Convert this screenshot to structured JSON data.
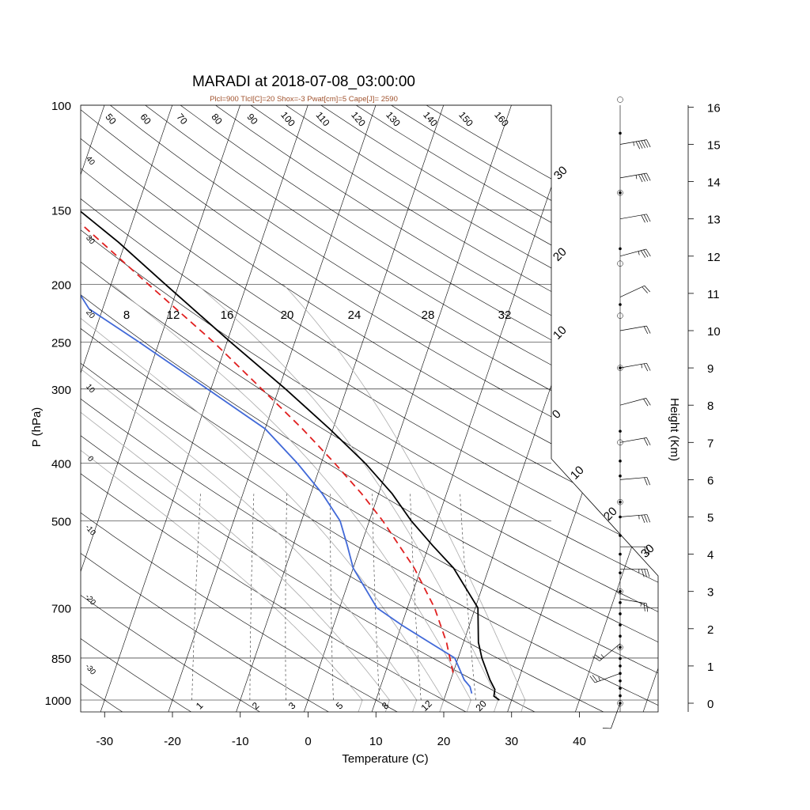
{
  "chart_data": {
    "type": "line",
    "title": "MARADI at 2018-07-08_03:00:00",
    "subtitle": "Plcl=900 Tlcl[C]=20 Shox=-3 Pwat[cm]=5 Cape[J]= 2590",
    "xlabel": "Temperature (C)",
    "ylabel": "P (hPa)",
    "y2label": "Height (Km)",
    "xlim": [
      -35,
      45
    ],
    "ylim": [
      1050,
      100
    ],
    "y_scale": "log",
    "x_ticks": [
      -30,
      -20,
      -10,
      0,
      10,
      20,
      30,
      40
    ],
    "p_ticks": [
      100,
      150,
      200,
      250,
      300,
      400,
      500,
      700,
      850,
      1000
    ],
    "height_ticks": [
      0,
      1,
      2,
      3,
      4,
      5,
      6,
      7,
      8,
      9,
      10,
      11,
      12,
      13,
      14,
      15,
      16
    ],
    "mixing_ratio_labels": [
      "1",
      "2",
      "3",
      "5",
      "8",
      "12",
      "20"
    ],
    "moist_adiabat_labels": [
      "8",
      "12",
      "16",
      "20",
      "24",
      "28",
      "32"
    ],
    "dry_adiabat_labels": [
      "50",
      "60",
      "70",
      "80",
      "90",
      "100",
      "110",
      "120",
      "130",
      "140",
      "150",
      "160"
    ],
    "skewed_isotherm_labels": [
      "40",
      "30",
      "20",
      "10",
      "0",
      "-10",
      "-20",
      "-30"
    ],
    "upper_isotherm_labels": [
      "30",
      "20",
      "10",
      "0",
      "10",
      "20",
      "30"
    ],
    "series": [
      {
        "name": "Temperature",
        "color": "#000000",
        "points": [
          [
            1000,
            28.2
          ],
          [
            985,
            27.2
          ],
          [
            960,
            27.0
          ],
          [
            925,
            25.8
          ],
          [
            850,
            23.5
          ],
          [
            800,
            22.2
          ],
          [
            700,
            20.4
          ],
          [
            600,
            14.8
          ],
          [
            550,
            10.6
          ],
          [
            500,
            6.2
          ],
          [
            450,
            2.0
          ],
          [
            400,
            -3.5
          ],
          [
            350,
            -10.5
          ],
          [
            300,
            -19.0
          ],
          [
            250,
            -29.5
          ],
          [
            200,
            -42.0
          ],
          [
            170,
            -51.0
          ],
          [
            150,
            -58.5
          ],
          [
            130,
            -67.5
          ],
          [
            115,
            -67.5
          ],
          [
            105,
            -69.0
          ]
        ]
      },
      {
        "name": "Dew point",
        "color": "#4169d8",
        "points": [
          [
            975,
            23.8
          ],
          [
            950,
            23.2
          ],
          [
            925,
            22.0
          ],
          [
            850,
            19.5
          ],
          [
            800,
            15.0
          ],
          [
            750,
            10.2
          ],
          [
            700,
            5.5
          ],
          [
            600,
            0.0
          ],
          [
            550,
            -2.0
          ],
          [
            500,
            -4.3
          ],
          [
            450,
            -8.3
          ],
          [
            400,
            -13.5
          ],
          [
            350,
            -20.0
          ],
          [
            300,
            -30.5
          ],
          [
            250,
            -43.0
          ],
          [
            220,
            -52.0
          ],
          [
            200,
            -55.5
          ],
          [
            170,
            -61.0
          ],
          [
            150,
            -66.0
          ],
          [
            130,
            -73.5
          ],
          [
            115,
            -74.0
          ],
          [
            105,
            -75.0
          ]
        ]
      },
      {
        "name": "Parcel",
        "color": "#e02020",
        "dashed": true,
        "points": [
          [
            900,
            20.0
          ],
          [
            800,
            17.5
          ],
          [
            700,
            14.0
          ],
          [
            600,
            9.0
          ],
          [
            500,
            2.0
          ],
          [
            450,
            -2.5
          ],
          [
            400,
            -8.0
          ],
          [
            350,
            -14.5
          ],
          [
            300,
            -22.5
          ],
          [
            250,
            -32.0
          ],
          [
            200,
            -44.5
          ],
          [
            170,
            -53.5
          ],
          [
            150,
            -60.5
          ],
          [
            130,
            -69.5
          ]
        ]
      }
    ],
    "height_dots_km": [
      0,
      0.2,
      0.4,
      0.6,
      0.8,
      1.0,
      1.2,
      1.5,
      1.8,
      2.1,
      2.4,
      2.7,
      3.0,
      3.5,
      4.0,
      4.5,
      5.0,
      5.4,
      6.1,
      6.5,
      7.3,
      9.0,
      10.7,
      12.2,
      13.7,
      15.3
    ],
    "height_circles_km": [
      0,
      1.5,
      3.0,
      5.4,
      7.0,
      9.0,
      10.4,
      11.8,
      13.7,
      16.2
    ],
    "wind_barbs": [
      {
        "h": 15.0,
        "speed": 45,
        "dir": 80
      },
      {
        "h": 14.1,
        "speed": 35,
        "dir": 80
      },
      {
        "h": 13.0,
        "speed": 30,
        "dir": 80
      },
      {
        "h": 12.0,
        "speed": 25,
        "dir": 75
      },
      {
        "h": 10.9,
        "speed": 20,
        "dir": 65
      },
      {
        "h": 10.0,
        "speed": 20,
        "dir": 80
      },
      {
        "h": 9.0,
        "speed": 15,
        "dir": 80
      },
      {
        "h": 8.0,
        "speed": 20,
        "dir": 75
      },
      {
        "h": 7.0,
        "speed": 20,
        "dir": 80
      },
      {
        "h": 6.0,
        "speed": 20,
        "dir": 85
      },
      {
        "h": 5.0,
        "speed": 25,
        "dir": 85
      },
      {
        "h": 4.2,
        "speed": 20,
        "dir": 90
      },
      {
        "h": 3.6,
        "speed": 25,
        "dir": 90
      },
      {
        "h": 2.8,
        "speed": 15,
        "dir": 100
      },
      {
        "h": 1.6,
        "speed": 15,
        "dir": 230
      },
      {
        "h": 0.8,
        "speed": 15,
        "dir": 250
      },
      {
        "h": 0.0,
        "speed": 10,
        "dir": 200
      }
    ]
  }
}
